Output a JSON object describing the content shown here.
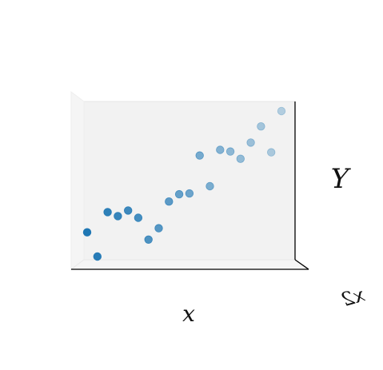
{
  "chart_data": {
    "type": "scatter",
    "projection": "3d",
    "title": "",
    "xlabel": "x",
    "ylabel": "Y",
    "zlabel": "x2",
    "xlim": [
      0,
      19
    ],
    "ylim": [
      0,
      30
    ],
    "grid": false,
    "marker_color": "#1f77b4",
    "depth_shading": true,
    "x": [
      0,
      1,
      2,
      3,
      4,
      5,
      6,
      7,
      8,
      9,
      10,
      11,
      12,
      13,
      14,
      15,
      16,
      17,
      18,
      19
    ],
    "y": [
      3.5,
      0.5,
      6,
      5.5,
      6.2,
      5.3,
      2.6,
      4,
      7.3,
      8.2,
      8.3,
      13,
      9.2,
      13.7,
      13.5,
      12.6,
      14.6,
      16.6,
      13.4,
      18.5
    ]
  },
  "colors": {
    "pane_back": "#f2f2f2",
    "pane_side": "#f5f5f5",
    "pane_edge": "#e6e6e6",
    "axis_line": "#000000"
  }
}
